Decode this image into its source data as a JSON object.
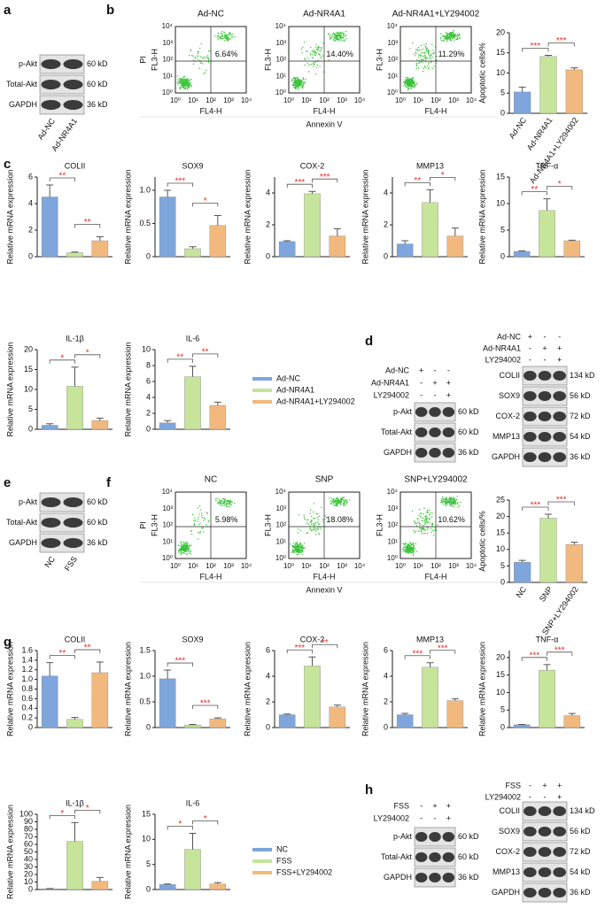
{
  "panel_labels": [
    "a",
    "b",
    "c",
    "d",
    "e",
    "f",
    "g",
    "h"
  ],
  "blot_a": {
    "rows": [
      {
        "label": "p-Akt",
        "size": "60 kD"
      },
      {
        "label": "Total-Akt",
        "size": "60 kD"
      },
      {
        "label": "GAPDH",
        "size": "36 kD"
      }
    ],
    "lanes": [
      "Ad-NC",
      "Ad-NR4A1"
    ]
  },
  "flow_b": {
    "y_outer": "PI",
    "ylabel": "FL3-H",
    "xlabel": "FL4-H",
    "axis_title": "Annexin V",
    "ticks": [
      "10⁰",
      "10¹",
      "10²",
      "10³",
      "10⁴"
    ],
    "panels": [
      {
        "title": "Ad-NC",
        "percent": "6.64%"
      },
      {
        "title": "Ad-NR4A1",
        "percent": "14.40%"
      },
      {
        "title": "Ad-NR4A1+LY294002",
        "percent": "11.29%"
      }
    ]
  },
  "blot_d": {
    "conditions": [
      {
        "label": "Ad-NC",
        "signs": [
          "+",
          "-",
          "-"
        ]
      },
      {
        "label": "Ad-NR4A1",
        "signs": [
          "-",
          "+",
          "+"
        ]
      },
      {
        "label": "LY294002",
        "signs": [
          "-",
          "-",
          "+"
        ]
      }
    ],
    "left_rows": [
      {
        "label": "p-Akt",
        "size": "60 kD"
      },
      {
        "label": "Total-Akt",
        "size": "60 kD"
      },
      {
        "label": "GAPDH",
        "size": "36 kD"
      }
    ],
    "right_rows": [
      {
        "label": "COLII",
        "size": "134 kD"
      },
      {
        "label": "SOX9",
        "size": "56 kD"
      },
      {
        "label": "COX-2",
        "size": "72 kD"
      },
      {
        "label": "MMP13",
        "size": "54 kD"
      },
      {
        "label": "GAPDH",
        "size": "36 kD"
      }
    ]
  },
  "blot_e": {
    "rows": [
      {
        "label": "p-Akt",
        "size": "60 kD"
      },
      {
        "label": "Total-Akt",
        "size": "60 kD"
      },
      {
        "label": "GAPDH",
        "size": "36 kD"
      }
    ],
    "lanes": [
      "NC",
      "FSS"
    ]
  },
  "flow_f": {
    "y_outer": "PI",
    "ylabel": "FL3-H",
    "xlabel": "FL4-H",
    "axis_title": "Annexin V",
    "ticks": [
      "10⁰",
      "10¹",
      "10²",
      "10³",
      "10⁴"
    ],
    "panels": [
      {
        "title": "NC",
        "percent": "5.98%"
      },
      {
        "title": "SNP",
        "percent": "18.08%"
      },
      {
        "title": "SNP+LY294002",
        "percent": "10.62%"
      }
    ]
  },
  "blot_h": {
    "conditions": [
      {
        "label": "FSS",
        "signs": [
          "-",
          "+",
          "+"
        ]
      },
      {
        "label": "LY294002",
        "signs": [
          "-",
          "-",
          "+"
        ]
      }
    ],
    "left_rows": [
      {
        "label": "p-Akt",
        "size": "60 kD"
      },
      {
        "label": "Total-Akt",
        "size": "60 kD"
      },
      {
        "label": "GAPDH",
        "size": "36 kD"
      }
    ],
    "right_rows": [
      {
        "label": "COLII",
        "size": "134 kD"
      },
      {
        "label": "SOX9",
        "size": "56 kD"
      },
      {
        "label": "COX-2",
        "size": "72 kD"
      },
      {
        "label": "MMP13",
        "size": "54 kD"
      },
      {
        "label": "GAPDH",
        "size": "36 kD"
      }
    ]
  },
  "legends": [
    {
      "entries": [
        "Ad-NC",
        "Ad-NR4A1",
        "Ad-NR4A1+LY294002"
      ]
    },
    {
      "entries": [
        "NC",
        "FSS",
        "FSS+LY294002"
      ]
    }
  ],
  "chart_data": [
    {
      "type": "bar",
      "ylabel": "Apoptotic cells/%",
      "categories": [
        "Ad-NC",
        "Ad-NR4A1",
        "Ad-NR4A1+LY294002"
      ],
      "values": [
        5.3,
        14.1,
        10.8
      ],
      "errors": [
        1.2,
        0.3,
        0.5
      ],
      "colors": [
        "#7ea6dc",
        "#c6e49a",
        "#f2b97f"
      ],
      "ylim": [
        0,
        20
      ],
      "yticks": [
        0,
        5,
        10,
        15,
        20
      ],
      "significance": [
        "***",
        "***"
      ]
    },
    {
      "type": "bar",
      "title": "COLII",
      "ylabel": "Relative mRNA expression",
      "values": [
        4.5,
        0.3,
        1.2
      ],
      "errors": [
        0.9,
        0.05,
        0.3
      ],
      "colors": [
        "#7ea6dc",
        "#c6e49a",
        "#f2b97f"
      ],
      "ylim": [
        0,
        6
      ],
      "yticks": [
        0,
        2,
        4,
        6
      ],
      "significance": [
        "**",
        "**"
      ]
    },
    {
      "type": "bar",
      "title": "SOX9",
      "ylabel": "Relative mRNA expression",
      "values": [
        0.9,
        0.12,
        0.47
      ],
      "errors": [
        0.1,
        0.03,
        0.15
      ],
      "colors": [
        "#7ea6dc",
        "#c6e49a",
        "#f2b97f"
      ],
      "ylim": [
        0,
        1.2
      ],
      "yticks": [
        0,
        0.5,
        {
          "value": 1,
          "label": "1.0"
        }
      ],
      "significance": [
        "***",
        "*"
      ]
    },
    {
      "type": "bar",
      "title": "COX-2",
      "ylabel": "Relative mRNA expression",
      "values": [
        0.95,
        3.95,
        1.3
      ],
      "errors": [
        0.05,
        0.15,
        0.45
      ],
      "colors": [
        "#7ea6dc",
        "#c6e49a",
        "#f2b97f"
      ],
      "ylim": [
        0,
        5
      ],
      "yticks": [
        0,
        2,
        4
      ],
      "significance": [
        "***",
        "***"
      ]
    },
    {
      "type": "bar",
      "title": "MMP13",
      "ylabel": "Relative mRNA expression",
      "values": [
        0.8,
        3.4,
        1.3
      ],
      "errors": [
        0.2,
        0.8,
        0.5
      ],
      "colors": [
        "#7ea6dc",
        "#c6e49a",
        "#f2b97f"
      ],
      "ylim": [
        0,
        5
      ],
      "yticks": [
        0,
        2,
        4
      ],
      "significance": [
        "**",
        "*"
      ]
    },
    {
      "type": "bar",
      "title": "TNF-α",
      "ylabel": "Relative mRNA expression",
      "values": [
        1.0,
        8.7,
        3.0
      ],
      "errors": [
        0.1,
        2.2,
        0.1
      ],
      "colors": [
        "#7ea6dc",
        "#c6e49a",
        "#f2b97f"
      ],
      "ylim": [
        0,
        15
      ],
      "yticks": [
        0,
        5,
        10,
        15
      ],
      "significance": [
        "**",
        "*"
      ]
    },
    {
      "type": "bar",
      "title": "IL-1β",
      "ylabel": "Relative mRNA expression",
      "values": [
        1.0,
        10.8,
        2.2
      ],
      "errors": [
        0.4,
        4.8,
        0.6
      ],
      "colors": [
        "#7ea6dc",
        "#c6e49a",
        "#f2b97f"
      ],
      "ylim": [
        0,
        20
      ],
      "yticks": [
        0,
        5,
        10,
        15,
        20
      ],
      "significance": [
        "*",
        "*"
      ]
    },
    {
      "type": "bar",
      "title": "IL-6",
      "ylabel": "Relative mRNA expression",
      "values": [
        0.8,
        6.6,
        3.0
      ],
      "errors": [
        0.3,
        1.3,
        0.4
      ],
      "colors": [
        "#7ea6dc",
        "#c6e49a",
        "#f2b97f"
      ],
      "ylim": [
        0,
        10
      ],
      "yticks": [
        0,
        2,
        4,
        6,
        8,
        10
      ],
      "significance": [
        "**",
        "**"
      ]
    },
    {
      "type": "bar",
      "ylabel": "Apoptotic cells/%",
      "categories": [
        "NC",
        "SNP",
        "SNP+LY294002"
      ],
      "values": [
        6.1,
        19.5,
        11.5
      ],
      "errors": [
        0.6,
        1.2,
        0.7
      ],
      "colors": [
        "#7ea6dc",
        "#c6e49a",
        "#f2b97f"
      ],
      "ylim": [
        0,
        25
      ],
      "yticks": [
        0,
        5,
        10,
        15,
        20,
        25
      ],
      "significance": [
        "***",
        "***"
      ]
    },
    {
      "type": "bar",
      "title": "COLII",
      "ylabel": "Relative mRNA expression",
      "values": [
        1.07,
        0.17,
        1.14
      ],
      "errors": [
        0.28,
        0.04,
        0.22
      ],
      "colors": [
        "#7ea6dc",
        "#c6e49a",
        "#f2b97f"
      ],
      "ylim": [
        0,
        1.6
      ],
      "yticks": [
        0,
        0.2,
        0.4,
        0.6,
        0.8,
        {
          "value": 1,
          "label": "1.0"
        },
        1.2,
        1.4,
        1.6
      ],
      "significance": [
        "**",
        "**"
      ]
    },
    {
      "type": "bar",
      "title": "SOX9",
      "ylabel": "Relative mRNA expression",
      "values": [
        0.95,
        0.05,
        0.17
      ],
      "errors": [
        0.17,
        0.01,
        0.02
      ],
      "colors": [
        "#7ea6dc",
        "#c6e49a",
        "#f2b97f"
      ],
      "ylim": [
        0,
        1.5
      ],
      "yticks": [
        0,
        0.5,
        {
          "value": 1,
          "label": "1.0"
        },
        1.5
      ],
      "significance": [
        "***",
        "***"
      ]
    },
    {
      "type": "bar",
      "title": "COX-2",
      "ylabel": "Relative mRNA expression",
      "values": [
        1.0,
        4.8,
        1.6
      ],
      "errors": [
        0.05,
        0.7,
        0.15
      ],
      "colors": [
        "#7ea6dc",
        "#c6e49a",
        "#f2b97f"
      ],
      "ylim": [
        0,
        6
      ],
      "yticks": [
        0,
        2,
        4,
        6
      ],
      "significance": [
        "***",
        "**"
      ]
    },
    {
      "type": "bar",
      "title": "MMP13",
      "ylabel": "Relative mRNA expression",
      "values": [
        1.0,
        4.7,
        2.1
      ],
      "errors": [
        0.1,
        0.35,
        0.15
      ],
      "colors": [
        "#7ea6dc",
        "#c6e49a",
        "#f2b97f"
      ],
      "ylim": [
        0,
        6
      ],
      "yticks": [
        0,
        2,
        4,
        6
      ],
      "significance": [
        "***",
        "***"
      ]
    },
    {
      "type": "bar",
      "title": "TNF-α",
      "ylabel": "Relative mRNA expression",
      "values": [
        0.8,
        16.4,
        3.4
      ],
      "errors": [
        0.1,
        1.6,
        0.6
      ],
      "colors": [
        "#7ea6dc",
        "#c6e49a",
        "#f2b97f"
      ],
      "ylim": [
        0,
        22
      ],
      "yticks": [
        0,
        5,
        10,
        15,
        20
      ],
      "significance": [
        "***",
        "***"
      ]
    },
    {
      "type": "bar",
      "title": "IL-1β",
      "ylabel": "Relative mRNA expression",
      "values": [
        1,
        64,
        11
      ],
      "errors": [
        0.3,
        25,
        5
      ],
      "colors": [
        "#7ea6dc",
        "#c6e49a",
        "#f2b97f"
      ],
      "ylim": [
        0,
        100
      ],
      "yticks": [
        0,
        10,
        20,
        30,
        40,
        50,
        60,
        70,
        80,
        90,
        100
      ],
      "significance": [
        "*",
        "*"
      ]
    },
    {
      "type": "bar",
      "title": "IL-6",
      "ylabel": "Relative mRNA expression",
      "values": [
        1.0,
        8.0,
        1.1
      ],
      "errors": [
        0.1,
        3.2,
        0.3
      ],
      "colors": [
        "#7ea6dc",
        "#c6e49a",
        "#f2b97f"
      ],
      "ylim": [
        0,
        15
      ],
      "yticks": [
        0,
        5,
        10,
        15
      ],
      "significance": [
        "*",
        "*"
      ]
    }
  ]
}
